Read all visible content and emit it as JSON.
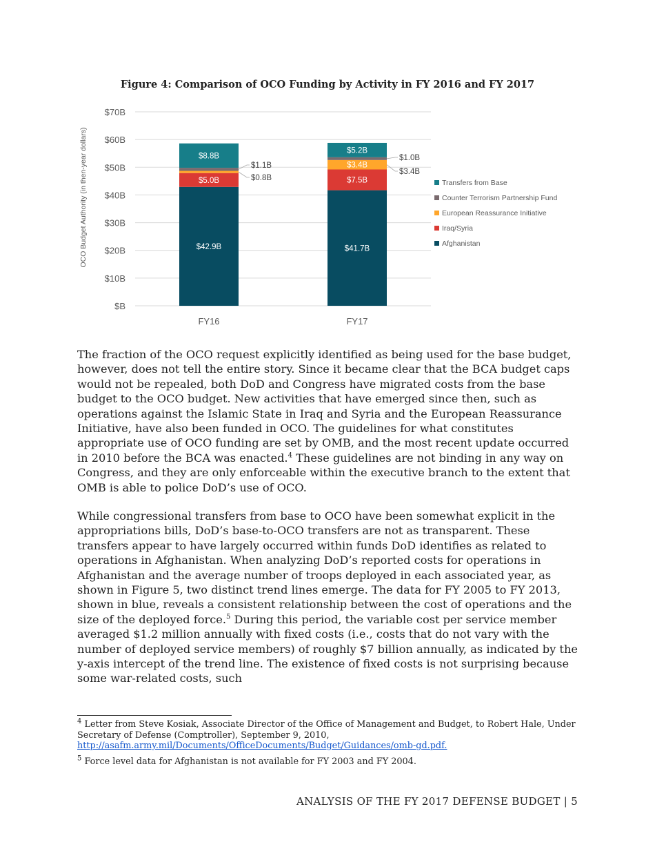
{
  "figure": {
    "title": "Figure 4: Comparison of OCO Funding by Activity in FY 2016 and FY 2017"
  },
  "chart_data": {
    "type": "bar",
    "stacked": true,
    "title": "Figure 4: Comparison of OCO Funding by Activity in FY 2016 and FY 2017",
    "xlabel": "",
    "ylabel": "OCO Budget Authority (in then-year dollars)",
    "ylim": [
      0,
      70
    ],
    "yticks": [
      "$B",
      "$10B",
      "$20B",
      "$30B",
      "$40B",
      "$50B",
      "$60B",
      "$70B"
    ],
    "grid": true,
    "legend": "right",
    "categories": [
      "FY16",
      "FY17"
    ],
    "series": [
      {
        "name": "Afghanistan",
        "color": "#084c61",
        "values": [
          42.9,
          41.7
        ],
        "labels": [
          "$42.9B",
          "$41.7B"
        ]
      },
      {
        "name": "Iraq/Syria",
        "color": "#db3a34",
        "values": [
          5.0,
          7.5
        ],
        "labels": [
          "$5.0B",
          "$7.5B"
        ]
      },
      {
        "name": "European Reassurance Initiative",
        "color": "#ffa62b",
        "values": [
          0.8,
          3.4
        ],
        "labels": [
          "$0.8B",
          "$3.4B"
        ]
      },
      {
        "name": "Counter Terrorism Partnership Fund",
        "color": "#7a6a6e",
        "values": [
          1.1,
          1.0
        ],
        "labels": [
          "$1.1B",
          "$1.0B"
        ]
      },
      {
        "name": "Transfers from Base",
        "color": "#177e89",
        "values": [
          8.8,
          5.2
        ],
        "labels": [
          "$8.8B",
          "$5.2B"
        ]
      }
    ],
    "legend_order": [
      "Transfers from Base",
      "Counter Terrorism Partnership Fund",
      "European Reassurance Initiative",
      "Iraq/Syria",
      "Afghanistan"
    ]
  },
  "body": {
    "p1": "The fraction of the OCO request explicitly identified as being used for the base budget, however, does not tell the entire story. Since it became clear that the BCA budget caps would not be repealed, both DoD and Congress have migrated costs from the base budget to the OCO budget. New activities that have emerged since then, such as operations against the Islamic State in Iraq and Syria and the European Reassurance Initiative, have also been funded in OCO. The guidelines for what constitutes appropriate use of OCO funding are set by OMB, and the most recent update occurred in 2010 before the BCA was enacted.",
    "p1_ref": "4",
    "p1_tail": " These guidelines are not binding in any way on Congress, and they are only enforceable within the executive branch to the extent that OMB is able to police DoD’s use of OCO.",
    "p2": "While congressional transfers from base to OCO have been somewhat explicit in the appropriations bills, DoD’s base-to-OCO transfers are not as transparent. These transfers appear to have largely occurred within funds DoD identifies as related to operations in Afghanistan. When analyzing DoD’s reported costs for operations in Afghanistan and the average number of troops deployed in each associated year, as shown in Figure 5, two distinct trend lines emerge. The data for FY 2005 to FY 2013, shown in blue, reveals a consistent relationship between the cost of operations and the size of the deployed force.",
    "p2_ref": "5",
    "p2_tail": " During this period, the variable cost per service member averaged $1.2 million annually with fixed costs (i.e., costs that do not vary with the number of deployed service members) of roughly $7 billion annually, as indicated by the y-axis intercept of the trend line. The existence of fixed costs is not surprising because some war-related costs, such"
  },
  "footnotes": [
    {
      "num": "4",
      "text": " Letter from Steve Kosiak, Associate Director of the Office of Management and Budget, to Robert Hale, Under Secretary of Defense (Comptroller), September 9, 2010,",
      "link": "http://asafm.army.mil/Documents/OfficeDocuments/Budget/Guidances/omb-gd.pdf."
    },
    {
      "num": "5",
      "text": " Force level data for Afghanistan is not available for FY 2003 and FY 2004."
    }
  ],
  "footer": "ANALYSIS OF THE FY 2017 DEFENSE BUDGET | 5"
}
